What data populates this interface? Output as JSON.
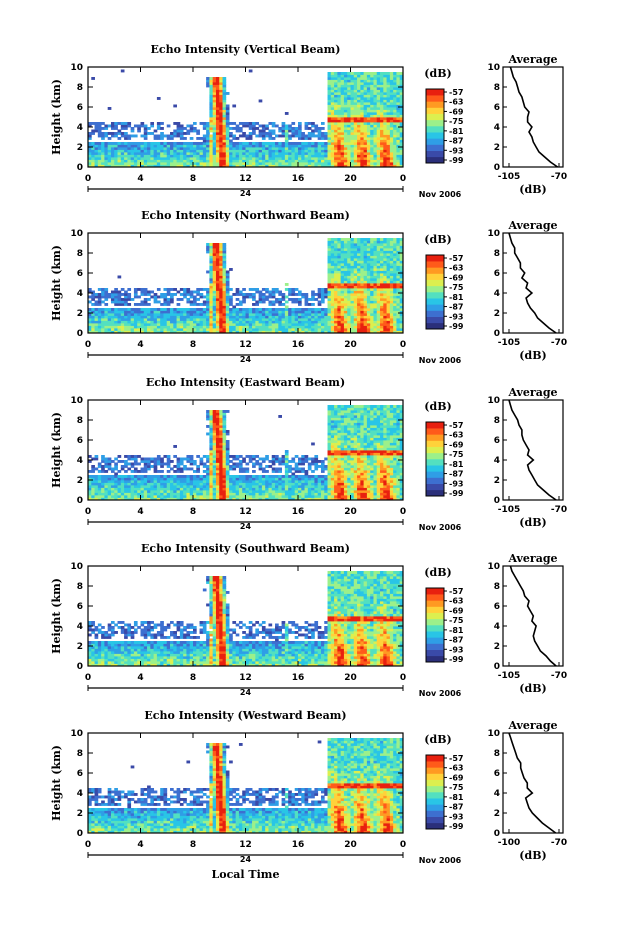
{
  "colors": {
    "colormap": [
      "#2b2f7a",
      "#3a4aa8",
      "#3d6fd0",
      "#2f9ee6",
      "#29c5e6",
      "#53e0c0",
      "#9cf08a",
      "#dcef4f",
      "#ffd23a",
      "#ff9a22",
      "#ff5a1a",
      "#e8200f"
    ],
    "line": "#000000",
    "background": "#ffffff"
  },
  "common": {
    "ylabel": "Height (km)",
    "yticks": [
      "0",
      "2",
      "4",
      "6",
      "8",
      "10"
    ],
    "xticks": [
      "0",
      "4",
      "8",
      "12",
      "16",
      "20",
      "0"
    ],
    "day_label": "24",
    "date_label": "Nov 2006",
    "xlabel": "Local Time",
    "colorbar_title": "(dB)",
    "colorbar_ticks": [
      "-57",
      "-63",
      "-69",
      "-75",
      "-81",
      "-87",
      "-93",
      "-99"
    ],
    "avg_title": "Average",
    "avg_xlabel": "(dB)",
    "avg_yticks": [
      "0",
      "2",
      "4",
      "6",
      "8",
      "10"
    ]
  },
  "chart_data": [
    {
      "type": "heatmap",
      "title": "Echo Intensity (Vertical Beam)",
      "xlim": [
        0,
        24
      ],
      "ylim": [
        0,
        10
      ],
      "avg_xticks": [
        "-105",
        "-70"
      ],
      "avg_profile": {
        "height_km": [
          0,
          0.5,
          1,
          1.5,
          2,
          2.5,
          3,
          3.5,
          4,
          4.5,
          5,
          5.5,
          6,
          6.5,
          7,
          7.5,
          8,
          8.5,
          9,
          9.5,
          10
        ],
        "db": [
          -71,
          -76,
          -80,
          -84,
          -86,
          -88,
          -89,
          -91,
          -89,
          -92,
          -92,
          -91,
          -94,
          -95,
          -96,
          -98,
          -99,
          -100,
          -102,
          -103,
          -104
        ]
      }
    },
    {
      "type": "heatmap",
      "title": "Echo Intensity (Northward Beam)",
      "xlim": [
        0,
        24
      ],
      "ylim": [
        0,
        10
      ],
      "avg_xticks": [
        "-105",
        "-70"
      ],
      "avg_profile": {
        "height_km": [
          0,
          0.5,
          1,
          1.5,
          2,
          2.5,
          3,
          3.5,
          4,
          4.5,
          5,
          5.5,
          6,
          6.5,
          7,
          7.5,
          8,
          8.5,
          9,
          9.5,
          10
        ],
        "db": [
          -72,
          -77,
          -81,
          -85,
          -87,
          -90,
          -92,
          -93,
          -89,
          -93,
          -92,
          -96,
          -94,
          -97,
          -97,
          -99,
          -101,
          -101,
          -103,
          -104,
          -105
        ]
      }
    },
    {
      "type": "heatmap",
      "title": "Echo Intensity (Eastward Beam)",
      "xlim": [
        0,
        24
      ],
      "ylim": [
        0,
        10
      ],
      "avg_xticks": [
        "-105",
        "-70"
      ],
      "avg_profile": {
        "height_km": [
          0,
          0.5,
          1,
          1.5,
          2,
          2.5,
          3,
          3.5,
          4,
          4.5,
          5,
          5.5,
          6,
          6.5,
          7,
          7.5,
          8,
          8.5,
          9,
          9.5,
          10
        ],
        "db": [
          -72,
          -77,
          -81,
          -85,
          -87,
          -89,
          -91,
          -92,
          -88,
          -92,
          -91,
          -93,
          -95,
          -96,
          -96,
          -98,
          -99,
          -101,
          -103,
          -104,
          -105
        ]
      }
    },
    {
      "type": "heatmap",
      "title": "Echo Intensity (Southward Beam)",
      "xlim": [
        0,
        24
      ],
      "ylim": [
        0,
        10
      ],
      "avg_xticks": [
        "-105",
        "-70"
      ],
      "avg_profile": {
        "height_km": [
          0,
          0.5,
          1,
          1.5,
          2,
          2.5,
          3,
          3.5,
          4,
          4.5,
          5,
          5.5,
          6,
          6.5,
          7,
          7.5,
          8,
          8.5,
          9,
          9.5,
          10
        ],
        "db": [
          -72,
          -76,
          -79,
          -83,
          -85,
          -87,
          -88,
          -87,
          -86,
          -89,
          -88,
          -90,
          -92,
          -91,
          -94,
          -95,
          -97,
          -99,
          -101,
          -103,
          -104
        ]
      }
    },
    {
      "type": "heatmap",
      "title": "Echo Intensity (Westward Beam)",
      "xlim": [
        0,
        24
      ],
      "ylim": [
        0,
        10
      ],
      "avg_xticks": [
        "-100",
        "-70"
      ],
      "avg_profile": {
        "height_km": [
          0,
          0.5,
          1,
          1.5,
          2,
          2.5,
          3,
          3.5,
          4,
          4.5,
          5,
          5.5,
          6,
          6.5,
          7,
          7.5,
          8,
          8.5,
          9,
          9.5,
          10
        ],
        "db": [
          -72,
          -76,
          -80,
          -83,
          -86,
          -88,
          -89,
          -90,
          -86,
          -89,
          -89,
          -91,
          -92,
          -93,
          -93,
          -95,
          -96,
          -97,
          -98,
          -99,
          -100
        ]
      }
    }
  ]
}
